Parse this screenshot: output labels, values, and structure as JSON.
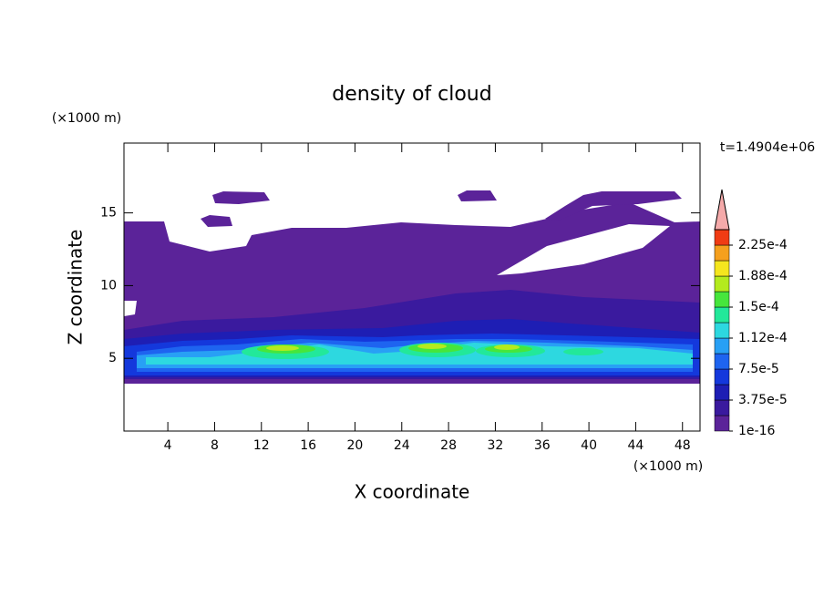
{
  "chart_data": {
    "type": "contour",
    "title": "density of cloud",
    "x_label": "X coordinate",
    "y_label": "Z coordinate",
    "x_unit": "(×1000 m)",
    "y_unit": "(×1000 m)",
    "time_label": "t=1.4904e+06",
    "xlim": [
      0.25,
      49.5
    ],
    "ylim": [
      0,
      19.8
    ],
    "xticks": [
      4,
      8,
      12,
      16,
      20,
      24,
      28,
      32,
      36,
      40,
      44,
      48
    ],
    "yticks": [
      5,
      10,
      15
    ],
    "levels": [
      1e-16,
      1.875e-05,
      3.75e-05,
      5.625e-05,
      7.5e-05,
      9.375e-05,
      0.0001125,
      0.00013125,
      0.00015,
      0.00016875,
      0.0001875,
      0.00020625,
      0.000225,
      0.00024375
    ],
    "colors": [
      "#5b2399",
      "#3a1a9e",
      "#1e1eb4",
      "#1438dc",
      "#1e64f0",
      "#28a0f5",
      "#2dd8e0",
      "#22e89a",
      "#46e63c",
      "#b4eb1e",
      "#f5e61e",
      "#f5a01e",
      "#f03c14"
    ],
    "extend_color": "#f5aaaa",
    "cbar_ticks": [
      {
        "value": 1e-16,
        "label": "1e-16"
      },
      {
        "value": 3.75e-05,
        "label": "3.75e-5"
      },
      {
        "value": 7.5e-05,
        "label": "7.5e-5"
      },
      {
        "value": 0.0001125,
        "label": "1.12e-4"
      },
      {
        "value": 0.00015,
        "label": "1.5e-4"
      },
      {
        "value": 0.0001875,
        "label": "1.88e-4"
      },
      {
        "value": 0.000225,
        "label": "2.25e-4"
      }
    ]
  }
}
